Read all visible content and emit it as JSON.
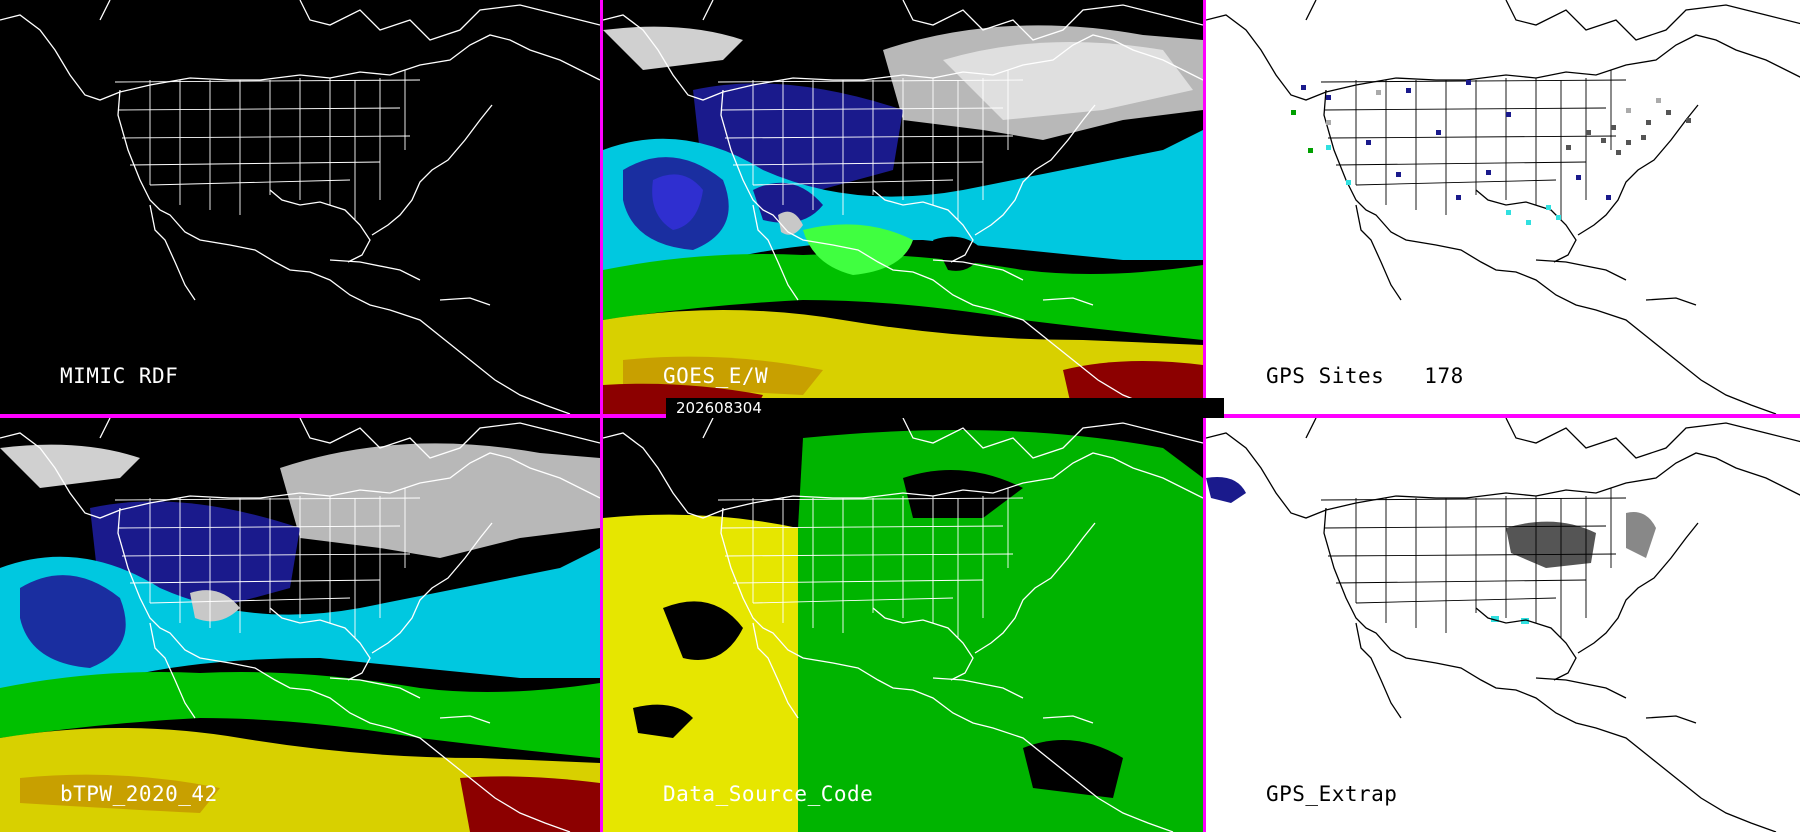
{
  "timestamp": "202608304",
  "panels": [
    {
      "id": "p1",
      "label": "MIMIC RDF",
      "background": "#000000",
      "text_color": "#ffffff",
      "has_data": false
    },
    {
      "id": "p2",
      "label": "GOES_E/W",
      "background": "#000000",
      "text_color": "#ffffff",
      "has_data": true,
      "style": "tpw"
    },
    {
      "id": "p3",
      "label": "GPS Sites",
      "count": "178",
      "background": "#ffffff",
      "text_color": "#000000",
      "style": "sites"
    },
    {
      "id": "p4",
      "label": "bTPW_2020_42",
      "background": "#000000",
      "text_color": "#ffffff",
      "has_data": true,
      "style": "tpw"
    },
    {
      "id": "p5",
      "label": "Data_Source_Code",
      "background": "#000000",
      "text_color": "#ffffff",
      "has_data": true,
      "style": "source"
    },
    {
      "id": "p6",
      "label": "GPS_Extrap",
      "background": "#ffffff",
      "text_color": "#000000",
      "style": "extrap"
    }
  ],
  "colors": {
    "separator": "#ff00ff",
    "tpw_scale": [
      "#d8d8d8",
      "#a0a0a0",
      "#1a1a8c",
      "#2f2fd0",
      "#00c8e0",
      "#30ffff",
      "#00c000",
      "#40ff40",
      "#e0e000",
      "#c8a000",
      "#a00000"
    ],
    "source_scale": [
      "#e6e600",
      "#00b400"
    ]
  },
  "icons": [
    "map-outline-icon"
  ]
}
